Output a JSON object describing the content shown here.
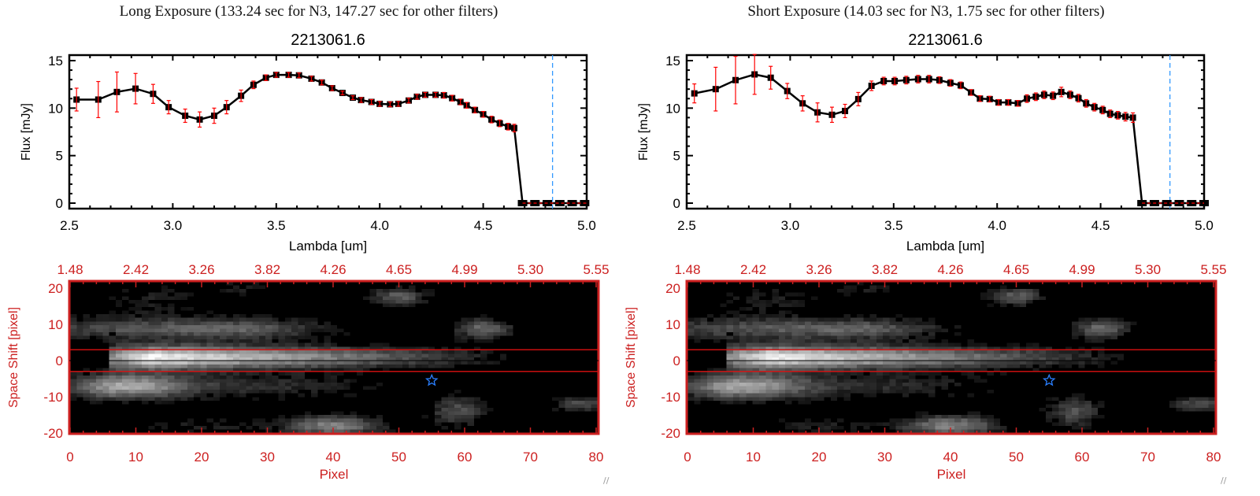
{
  "chart_data": [
    {
      "type": "line",
      "panel_title": "Long Exposure (133.24 sec for N3, 147.27 sec for other filters)",
      "title": "2213061.6",
      "xlabel": "Lambda [um]",
      "ylabel": "Flux [mJy]",
      "xlim": [
        2.5,
        5.0
      ],
      "ylim": [
        0,
        15
      ],
      "xticks": [
        "2.5",
        "3.0",
        "3.5",
        "4.0",
        "4.5",
        "5.0"
      ],
      "yticks": [
        "0",
        "5",
        "10",
        "15"
      ],
      "cutoff_line_x": 4.835,
      "x": [
        2.535,
        2.64,
        2.73,
        2.82,
        2.905,
        2.98,
        3.06,
        3.13,
        3.2,
        3.26,
        3.33,
        3.39,
        3.45,
        3.5,
        3.56,
        3.61,
        3.67,
        3.72,
        3.77,
        3.82,
        3.87,
        3.91,
        3.96,
        4.0,
        4.05,
        4.09,
        4.14,
        4.18,
        4.22,
        4.27,
        4.31,
        4.35,
        4.39,
        4.42,
        4.46,
        4.5,
        4.54,
        4.58,
        4.62,
        4.65
      ],
      "y": [
        10.9,
        10.9,
        11.7,
        12.05,
        11.5,
        10.1,
        9.2,
        8.8,
        9.2,
        10.1,
        11.3,
        12.45,
        13.2,
        13.5,
        13.5,
        13.45,
        13.1,
        12.7,
        12.1,
        11.6,
        11.1,
        10.85,
        10.65,
        10.45,
        10.4,
        10.45,
        10.8,
        11.2,
        11.4,
        11.4,
        11.35,
        11.05,
        10.65,
        10.3,
        9.8,
        9.35,
        8.8,
        8.4,
        8.05,
        7.9
      ],
      "yerr": [
        1.2,
        1.9,
        2.1,
        1.6,
        1.0,
        0.7,
        0.7,
        0.8,
        0.8,
        0.7,
        0.6,
        0.4,
        0.3,
        0.25,
        0.25,
        0.25,
        0.25,
        0.25,
        0.25,
        0.2,
        0.2,
        0.25,
        0.25,
        0.25,
        0.25,
        0.25,
        0.25,
        0.25,
        0.25,
        0.25,
        0.3,
        0.3,
        0.3,
        0.3,
        0.3,
        0.3,
        0.35,
        0.35,
        0.35,
        0.4
      ],
      "zero_x": [
        4.69,
        4.75,
        4.81,
        4.87,
        4.93,
        4.99
      ],
      "image": {
        "xlabel": "Pixel",
        "ylabel": "Space Shift [pixel]",
        "xticks": [
          "0",
          "10",
          "20",
          "30",
          "40",
          "50",
          "60",
          "70",
          "80"
        ],
        "yticks": [
          "20",
          "10",
          "0",
          "-10",
          "-20"
        ],
        "top_ticks": [
          "1.48",
          "2.42",
          "3.26",
          "3.82",
          "4.26",
          "4.65",
          "4.99",
          "5.30",
          "5.55"
        ],
        "aperture": [
          -3,
          3
        ],
        "source_marker": [
          55,
          -5.5
        ]
      }
    },
    {
      "type": "line",
      "panel_title": "Short Exposure (14.03 sec for N3, 1.75 sec for other filters)",
      "title": "2213061.6",
      "xlabel": "Lambda [um]",
      "ylabel": "Flux [mJy]",
      "xlim": [
        2.5,
        5.0
      ],
      "ylim": [
        0,
        15
      ],
      "xticks": [
        "2.5",
        "3.0",
        "3.5",
        "4.0",
        "4.5",
        "5.0"
      ],
      "yticks": [
        "0",
        "5",
        "10",
        "15"
      ],
      "cutoff_line_x": 4.835,
      "x": [
        2.537,
        2.64,
        2.736,
        2.828,
        2.906,
        2.986,
        3.06,
        3.132,
        3.202,
        3.265,
        3.329,
        3.393,
        3.452,
        3.505,
        3.561,
        3.618,
        3.671,
        3.721,
        3.774,
        3.824,
        3.874,
        3.917,
        3.964,
        4.007,
        4.054,
        4.1,
        4.144,
        4.187,
        4.227,
        4.27,
        4.31,
        4.353,
        4.393,
        4.43,
        4.47,
        4.51,
        4.546,
        4.583,
        4.62,
        4.656
      ],
      "y": [
        11.55,
        12.0,
        12.95,
        13.55,
        13.2,
        11.8,
        10.5,
        9.55,
        9.3,
        9.7,
        10.95,
        12.35,
        12.85,
        12.85,
        12.95,
        13.05,
        13.05,
        12.95,
        12.65,
        12.4,
        11.65,
        11.0,
        10.95,
        10.6,
        10.6,
        10.5,
        11.0,
        11.2,
        11.4,
        11.3,
        11.7,
        11.4,
        11.05,
        10.5,
        10.1,
        9.8,
        9.4,
        9.25,
        9.1,
        9.0
      ],
      "yerr": [
        1.0,
        2.3,
        2.5,
        2.1,
        1.2,
        0.8,
        0.8,
        1.0,
        0.8,
        0.7,
        0.7,
        0.5,
        0.4,
        0.4,
        0.4,
        0.4,
        0.4,
        0.35,
        0.35,
        0.35,
        0.3,
        0.3,
        0.3,
        0.3,
        0.3,
        0.3,
        0.4,
        0.4,
        0.4,
        0.4,
        0.5,
        0.4,
        0.4,
        0.4,
        0.4,
        0.4,
        0.4,
        0.4,
        0.45,
        0.5
      ],
      "zero_x": [
        4.7,
        4.76,
        4.82,
        4.88,
        4.94,
        5.0
      ],
      "image": {
        "xlabel": "Pixel",
        "ylabel": "Space Shift [pixel]",
        "xticks": [
          "0",
          "10",
          "20",
          "30",
          "40",
          "50",
          "60",
          "70",
          "80"
        ],
        "yticks": [
          "20",
          "10",
          "0",
          "-10",
          "-20"
        ],
        "top_ticks": [
          "1.48",
          "2.42",
          "3.26",
          "3.82",
          "4.26",
          "4.65",
          "4.99",
          "5.30",
          "5.55"
        ],
        "aperture": [
          -3,
          3
        ],
        "source_marker": [
          55,
          -5.5
        ]
      }
    }
  ],
  "colors": {
    "axis": "#000000",
    "error": "#ff0000",
    "image_axis": "#cc2020",
    "cutoff": "#3399ff",
    "star": "#2a7fff"
  }
}
